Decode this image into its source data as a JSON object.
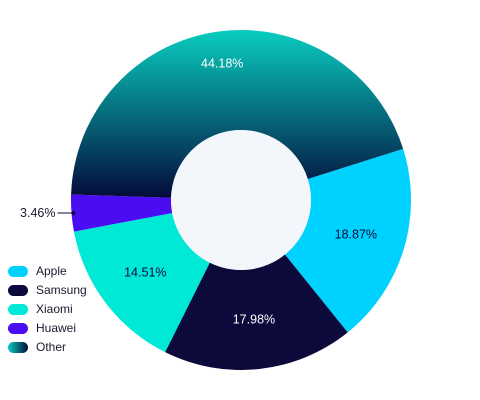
{
  "chart_data": {
    "type": "pie",
    "variant": "donut",
    "title": "",
    "categories": [
      "Apple",
      "Samsung",
      "Xiaomi",
      "Huawei",
      "Other"
    ],
    "values": [
      18.87,
      17.98,
      14.51,
      3.46,
      44.18
    ],
    "labels": [
      "18.87%",
      "17.98%",
      "14.51%",
      "3.46%",
      "44.18%"
    ],
    "colors": [
      "#00d2ff",
      "#0b0a3b",
      "#00e8d6",
      "#4a0cf0",
      "#0d9e96"
    ],
    "other_gradient": [
      "#08cdbf",
      "#040b3a"
    ],
    "center_color": "#f3f6fb",
    "legend_position": "bottom-left"
  }
}
